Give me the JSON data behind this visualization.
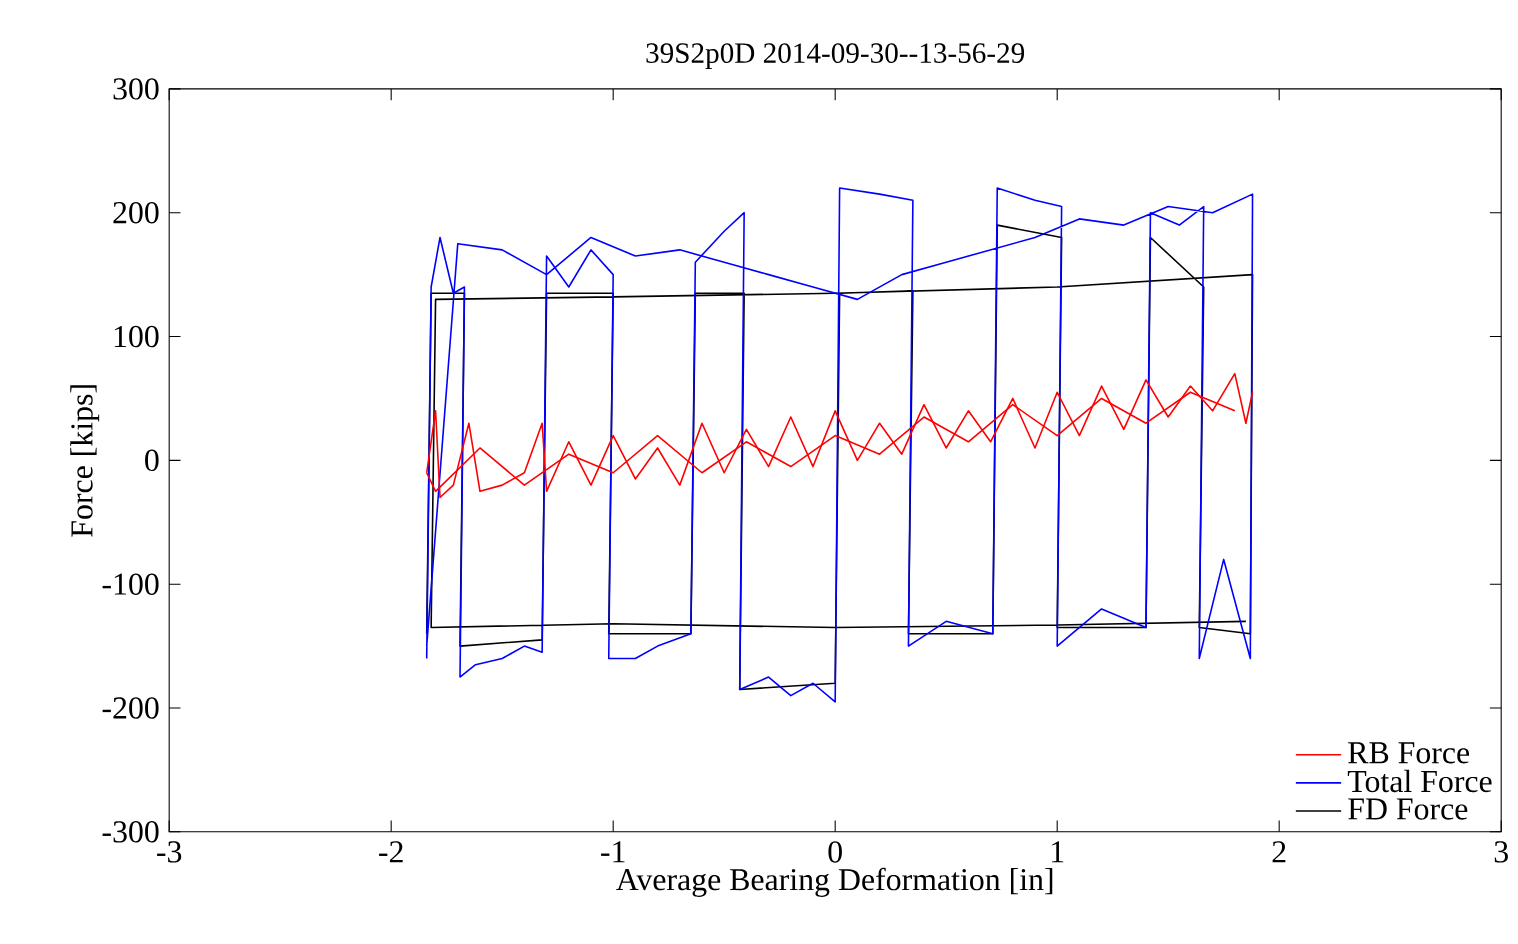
{
  "chart_data": {
    "type": "line",
    "title": "39S2p0D 2014-09-30--13-56-29",
    "xlabel": "Average Bearing Deformation [in]",
    "ylabel": "Force [kips]",
    "xlim": [
      -3,
      3
    ],
    "ylim": [
      -300,
      300
    ],
    "xticks": [
      -3,
      -2,
      -1,
      0,
      1,
      2,
      3
    ],
    "yticks": [
      -300,
      -200,
      -100,
      0,
      100,
      200,
      300
    ],
    "legend": "bottom right",
    "grid": false,
    "line_style": "solid",
    "marker": "none",
    "series": [
      {
        "name": "RB Force",
        "color": "#ff0000",
        "x": [
          -1.84,
          -1.8,
          -1.78,
          -1.72,
          -1.65,
          -1.6,
          -1.5,
          -1.4,
          -1.32,
          -1.3,
          -1.2,
          -1.1,
          -1.0,
          -0.9,
          -0.8,
          -0.7,
          -0.6,
          -0.5,
          -0.4,
          -0.3,
          -0.2,
          -0.1,
          0.0,
          0.1,
          0.2,
          0.3,
          0.4,
          0.5,
          0.6,
          0.7,
          0.8,
          0.9,
          1.0,
          1.1,
          1.2,
          1.3,
          1.4,
          1.5,
          1.6,
          1.7,
          1.8,
          1.85,
          1.88
        ],
        "values": [
          -10,
          40,
          -30,
          -20,
          30,
          -25,
          -20,
          -10,
          30,
          -25,
          15,
          -20,
          20,
          -15,
          10,
          -20,
          30,
          -10,
          25,
          -5,
          35,
          -5,
          40,
          0,
          30,
          5,
          45,
          10,
          40,
          15,
          50,
          10,
          55,
          20,
          60,
          25,
          65,
          35,
          60,
          40,
          70,
          30,
          55
        ]
      },
      {
        "color": "#ff0000",
        "x": [
          -1.84,
          -1.8,
          -1.6,
          -1.4,
          -1.2,
          -1.0,
          -0.8,
          -0.6,
          -0.4,
          -0.2,
          0.0,
          0.2,
          0.4,
          0.6,
          0.8,
          1.0,
          1.2,
          1.4,
          1.6,
          1.8
        ],
        "values": [
          -10,
          -25,
          10,
          -20,
          5,
          -10,
          20,
          -10,
          15,
          -5,
          20,
          5,
          35,
          15,
          45,
          20,
          50,
          30,
          55,
          40
        ]
      },
      {
        "name": "Total Force",
        "color": "#0000ff",
        "x": [
          -1.84,
          -1.82,
          -1.78,
          -1.72,
          -1.67,
          -1.69,
          -1.62,
          -1.5,
          -1.4,
          -1.32,
          -1.3,
          -1.2,
          -1.1,
          -1.0,
          -1.02,
          -0.9,
          -0.8,
          -0.65,
          -0.63,
          -0.5,
          -0.41,
          -0.43,
          -0.3,
          -0.2,
          -0.1,
          0.0,
          0.02,
          0.2,
          0.35,
          0.33,
          0.5,
          0.71,
          0.73,
          0.9,
          1.02,
          1.0,
          1.2,
          1.4,
          1.42,
          1.55,
          1.66,
          1.64,
          1.75,
          1.87,
          1.88,
          1.7,
          1.5,
          1.3,
          1.1,
          0.9,
          0.7,
          0.5,
          0.3,
          0.1,
          -0.1,
          -0.3,
          -0.5,
          -0.7,
          -0.9,
          -1.1,
          -1.3,
          -1.5,
          -1.7,
          -1.84
        ],
        "values": [
          -160,
          140,
          180,
          135,
          140,
          -175,
          -165,
          -160,
          -150,
          -155,
          165,
          140,
          170,
          150,
          -160,
          -160,
          -150,
          -140,
          160,
          185,
          200,
          -185,
          -175,
          -190,
          -180,
          -195,
          220,
          215,
          210,
          -150,
          -130,
          -140,
          220,
          210,
          205,
          -150,
          -120,
          -135,
          200,
          190,
          205,
          -160,
          -80,
          -160,
          215,
          200,
          205,
          190,
          195,
          180,
          170,
          160,
          150,
          130,
          140,
          150,
          160,
          170,
          165,
          180,
          150,
          170,
          175,
          -150
        ]
      },
      {
        "name": "FD Force",
        "color": "#000000",
        "x": [
          -1.84,
          -1.82,
          -1.67,
          -1.69,
          -1.32,
          -1.3,
          -1.0,
          -1.02,
          -0.65,
          -0.63,
          -0.41,
          -0.43,
          0.0,
          0.02,
          0.35,
          0.33,
          0.71,
          0.73,
          1.02,
          1.0,
          1.4,
          1.42,
          1.66,
          1.64,
          1.87,
          1.88,
          1.0,
          0.0,
          -1.0,
          -1.8,
          -1.82,
          -1.0,
          0.0,
          1.0,
          1.85
        ],
        "values": [
          -140,
          135,
          135,
          -150,
          -145,
          135,
          135,
          -140,
          -140,
          135,
          135,
          -185,
          -180,
          135,
          137,
          -140,
          -140,
          190,
          180,
          -135,
          -135,
          180,
          140,
          -135,
          -140,
          150,
          140,
          135,
          132,
          130,
          -135,
          -132,
          -135,
          -133,
          -130
        ]
      }
    ]
  }
}
